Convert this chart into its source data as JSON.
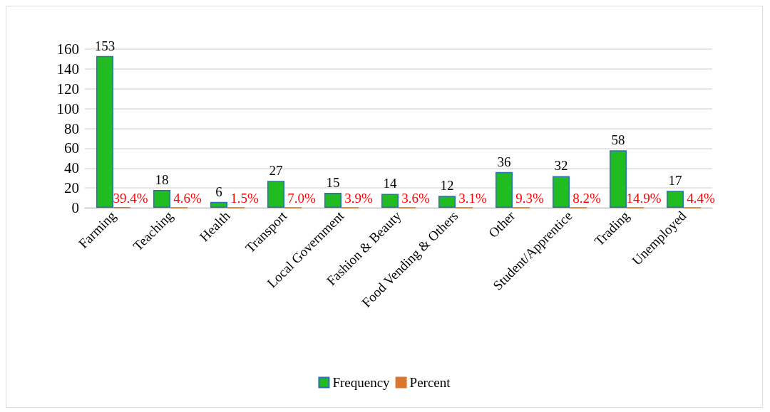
{
  "chart_data": {
    "type": "bar",
    "categories": [
      "Farming",
      "Teaching",
      "Health",
      "Transport",
      "Local Government",
      "Fashion & Beauty",
      "Food Vending & Others",
      "Other",
      "Student/Apprentice",
      "Trading",
      "Unemployed"
    ],
    "series": [
      {
        "name": "Frequency",
        "color": "#22bb22",
        "values": [
          153,
          18,
          6,
          27,
          15,
          14,
          12,
          36,
          32,
          58,
          17
        ],
        "value_labels": [
          "153",
          "18",
          "6",
          "27",
          "15",
          "14",
          "12",
          "36",
          "32",
          "58",
          "17"
        ]
      },
      {
        "name": "Percent",
        "color": "#d9772e",
        "values": [
          0.394,
          0.046,
          0.015,
          0.07,
          0.039,
          0.036,
          0.031,
          0.093,
          0.082,
          0.149,
          0.044
        ],
        "value_labels": [
          "39.4%",
          "4.6%",
          "1.5%",
          "7.0%",
          "3.9%",
          "3.6%",
          "3.1%",
          "9.3%",
          "8.2%",
          "14.9%",
          "4.4%"
        ]
      }
    ],
    "ylim": [
      0,
      160
    ],
    "yticks": [
      0,
      20,
      40,
      60,
      80,
      100,
      120,
      140,
      160
    ],
    "grid": "y",
    "legend": "bottom"
  }
}
